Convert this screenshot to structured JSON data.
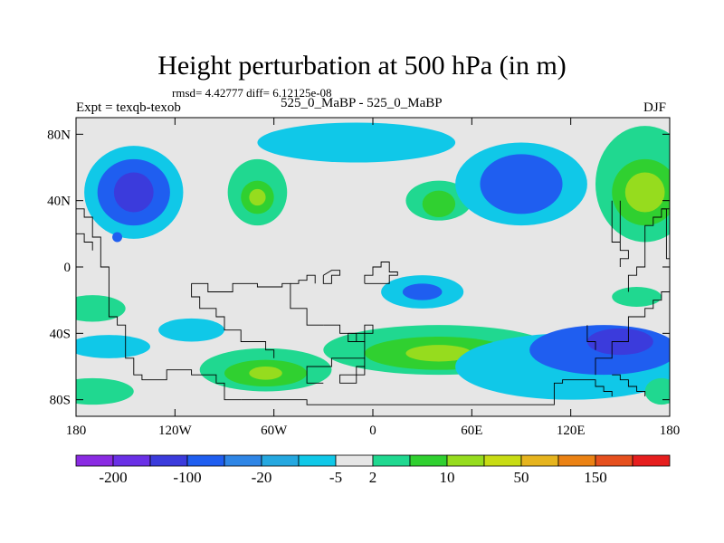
{
  "title": "Height perturbation at 500 hPa (in m)",
  "stats_text": "rmsd= 4.42777 diff= 6.12125e-08",
  "left_label": "Expt = texqb-texob",
  "center_label": "525_0_MaBP - 525_0_MaBP",
  "right_label": "DJF",
  "chart_data": {
    "type": "heatmap",
    "x_range": [
      -180,
      180
    ],
    "y_range": [
      -90,
      90
    ],
    "x_ticks": [
      {
        "value": -180,
        "label": "180"
      },
      {
        "value": -120,
        "label": "120W"
      },
      {
        "value": -60,
        "label": "60W"
      },
      {
        "value": 0,
        "label": "0"
      },
      {
        "value": 60,
        "label": "60E"
      },
      {
        "value": 120,
        "label": "120E"
      },
      {
        "value": 180,
        "label": "180"
      }
    ],
    "y_ticks": [
      {
        "value": 80,
        "label": "80N"
      },
      {
        "value": 40,
        "label": "40N"
      },
      {
        "value": 0,
        "label": "0"
      },
      {
        "value": -40,
        "label": "40S"
      },
      {
        "value": -80,
        "label": "80S"
      }
    ],
    "colorbar": {
      "colors": [
        "#8a2be2",
        "#6a30e6",
        "#3b3bdc",
        "#1f5ef0",
        "#2f86e6",
        "#25a8e0",
        "#10c8e8",
        "#e6e6e6",
        "#20d890",
        "#30d030",
        "#96dc1e",
        "#c8dc14",
        "#e6b41e",
        "#eb8214",
        "#e6501e",
        "#e61e1e"
      ],
      "labels": [
        "-200",
        "-100",
        "-20",
        "-5",
        "2",
        "10",
        "50",
        "150"
      ]
    },
    "regions": [
      {
        "lon": -145,
        "lat": 45,
        "rx": 30,
        "ry": 28,
        "level": -5
      },
      {
        "lon": -145,
        "lat": 45,
        "rx": 22,
        "ry": 20,
        "level": -20
      },
      {
        "lon": -145,
        "lat": 45,
        "rx": 12,
        "ry": 12,
        "level": -100
      },
      {
        "lon": -70,
        "lat": 45,
        "rx": 18,
        "ry": 20,
        "level": 2
      },
      {
        "lon": -70,
        "lat": 42,
        "rx": 10,
        "ry": 10,
        "level": 10
      },
      {
        "lon": -70,
        "lat": 42,
        "rx": 5,
        "ry": 5,
        "level": 50
      },
      {
        "lon": -10,
        "lat": 75,
        "rx": 60,
        "ry": 12,
        "level": -5
      },
      {
        "lon": 40,
        "lat": 40,
        "rx": 20,
        "ry": 12,
        "level": 2
      },
      {
        "lon": 40,
        "lat": 38,
        "rx": 10,
        "ry": 8,
        "level": 10
      },
      {
        "lon": 90,
        "lat": 50,
        "rx": 40,
        "ry": 25,
        "level": -5
      },
      {
        "lon": 90,
        "lat": 50,
        "rx": 25,
        "ry": 18,
        "level": -20
      },
      {
        "lon": 165,
        "lat": 50,
        "rx": 30,
        "ry": 35,
        "level": 2
      },
      {
        "lon": 165,
        "lat": 45,
        "rx": 20,
        "ry": 20,
        "level": 10
      },
      {
        "lon": 165,
        "lat": 45,
        "rx": 12,
        "ry": 12,
        "level": 50
      },
      {
        "lon": -155,
        "lat": 18,
        "rx": 3,
        "ry": 3,
        "level": -20
      },
      {
        "lon": 30,
        "lat": -15,
        "rx": 25,
        "ry": 10,
        "level": -5
      },
      {
        "lon": 30,
        "lat": -15,
        "rx": 12,
        "ry": 5,
        "level": -20
      },
      {
        "lon": -170,
        "lat": -25,
        "rx": 20,
        "ry": 8,
        "level": 2
      },
      {
        "lon": 160,
        "lat": -18,
        "rx": 15,
        "ry": 6,
        "level": 2
      },
      {
        "lon": -110,
        "lat": -38,
        "rx": 20,
        "ry": 7,
        "level": -5
      },
      {
        "lon": -160,
        "lat": -48,
        "rx": 25,
        "ry": 7,
        "level": -5
      },
      {
        "lon": 40,
        "lat": -50,
        "rx": 70,
        "ry": 15,
        "level": 2
      },
      {
        "lon": 40,
        "lat": -52,
        "rx": 45,
        "ry": 10,
        "level": 10
      },
      {
        "lon": 40,
        "lat": -52,
        "rx": 20,
        "ry": 5,
        "level": 50
      },
      {
        "lon": -65,
        "lat": -62,
        "rx": 40,
        "ry": 13,
        "level": 2
      },
      {
        "lon": -65,
        "lat": -64,
        "rx": 25,
        "ry": 8,
        "level": 10
      },
      {
        "lon": -65,
        "lat": -64,
        "rx": 10,
        "ry": 4,
        "level": 50
      },
      {
        "lon": 120,
        "lat": -60,
        "rx": 70,
        "ry": 20,
        "level": -5
      },
      {
        "lon": 140,
        "lat": -50,
        "rx": 45,
        "ry": 15,
        "level": -20
      },
      {
        "lon": 150,
        "lat": -45,
        "rx": 20,
        "ry": 8,
        "level": -100
      },
      {
        "lon": -170,
        "lat": -75,
        "rx": 25,
        "ry": 8,
        "level": 2
      },
      {
        "lon": 175,
        "lat": -75,
        "rx": 10,
        "ry": 8,
        "level": 2
      }
    ],
    "coastlines": [
      [
        [
          -180,
          35
        ],
        [
          -175,
          35
        ],
        [
          -175,
          30
        ],
        [
          -170,
          30
        ],
        [
          -170,
          18
        ],
        [
          -165,
          18
        ],
        [
          -165,
          0
        ],
        [
          -160,
          0
        ],
        [
          -160,
          -30
        ],
        [
          -155,
          -30
        ],
        [
          -155,
          -35
        ],
        [
          -150,
          -35
        ],
        [
          -150,
          -45
        ],
        [
          -150,
          -55
        ],
        [
          -145,
          -55
        ],
        [
          -145,
          -65
        ],
        [
          -140,
          -65
        ],
        [
          -140,
          -68
        ],
        [
          -125,
          -68
        ],
        [
          -125,
          -62
        ],
        [
          -110,
          -62
        ],
        [
          -110,
          -65
        ],
        [
          -95,
          -65
        ],
        [
          -95,
          -70
        ],
        [
          -90,
          -70
        ],
        [
          -90,
          -80
        ],
        [
          -80,
          -80
        ]
      ],
      [
        [
          -80,
          -80
        ],
        [
          -40,
          -80
        ],
        [
          -40,
          -83
        ],
        [
          110,
          -83
        ],
        [
          110,
          -70
        ],
        [
          115,
          -70
        ],
        [
          115,
          -68
        ],
        [
          135,
          -68
        ],
        [
          135,
          -72
        ],
        [
          140,
          -72
        ],
        [
          140,
          -75
        ],
        [
          145,
          -75
        ],
        [
          145,
          -78
        ]
      ],
      [
        [
          -110,
          -10
        ],
        [
          -110,
          -18
        ],
        [
          -105,
          -18
        ],
        [
          -105,
          -25
        ],
        [
          -95,
          -25
        ],
        [
          -95,
          -30
        ],
        [
          -90,
          -30
        ],
        [
          -90,
          -38
        ],
        [
          -80,
          -38
        ],
        [
          -80,
          -45
        ],
        [
          -65,
          -45
        ],
        [
          -65,
          -50
        ],
        [
          -60,
          -50
        ],
        [
          -60,
          -55
        ]
      ],
      [
        [
          -110,
          -10
        ],
        [
          -100,
          -10
        ],
        [
          -100,
          -15
        ],
        [
          -85,
          -15
        ],
        [
          -85,
          -10
        ],
        [
          -70,
          -10
        ],
        [
          -70,
          -12
        ],
        [
          -55,
          -12
        ],
        [
          -55,
          -10
        ],
        [
          -50,
          -10
        ],
        [
          -50,
          -25
        ],
        [
          -40,
          -25
        ],
        [
          -40,
          -35
        ],
        [
          -30,
          -35
        ]
      ],
      [
        [
          -30,
          -35
        ],
        [
          -20,
          -35
        ],
        [
          -20,
          -40
        ],
        [
          -10,
          -40
        ],
        [
          -10,
          -45
        ],
        [
          -5,
          -45
        ],
        [
          -5,
          -55
        ],
        [
          -25,
          -55
        ],
        [
          -25,
          -60
        ],
        [
          -40,
          -60
        ],
        [
          -40,
          -70
        ],
        [
          -30,
          -70
        ]
      ],
      [
        [
          -15,
          -40
        ],
        [
          -15,
          -45
        ],
        [
          -5,
          -45
        ],
        [
          -5,
          -35
        ],
        [
          0,
          -35
        ],
        [
          0,
          -40
        ],
        [
          -15,
          -40
        ]
      ],
      [
        [
          -5,
          -55
        ],
        [
          -5,
          -65
        ],
        [
          -20,
          -65
        ],
        [
          -20,
          -70
        ],
        [
          -10,
          -70
        ],
        [
          -10,
          -60
        ],
        [
          -5,
          -60
        ]
      ],
      [
        [
          -5,
          -10
        ],
        [
          -5,
          -5
        ],
        [
          0,
          -5
        ],
        [
          0,
          0
        ],
        [
          5,
          0
        ],
        [
          5,
          3
        ],
        [
          10,
          3
        ],
        [
          10,
          -3
        ],
        [
          15,
          -3
        ],
        [
          15,
          -5
        ],
        [
          10,
          -5
        ],
        [
          10,
          -10
        ],
        [
          5,
          -10
        ],
        [
          -5,
          -10
        ]
      ],
      [
        [
          -30,
          -5
        ],
        [
          -30,
          -10
        ],
        [
          -25,
          -10
        ],
        [
          -25,
          -5
        ],
        [
          -20,
          -5
        ],
        [
          -20,
          -2
        ],
        [
          -25,
          -2
        ],
        [
          -30,
          -5
        ]
      ],
      [
        [
          -50,
          -10
        ],
        [
          -45,
          -10
        ],
        [
          -45,
          -8
        ],
        [
          -40,
          -8
        ],
        [
          -40,
          -5
        ],
        [
          -35,
          -5
        ],
        [
          -35,
          -10
        ]
      ],
      [
        [
          135,
          -65
        ],
        [
          135,
          -55
        ],
        [
          145,
          -55
        ],
        [
          145,
          -45
        ],
        [
          155,
          -45
        ],
        [
          155,
          -30
        ],
        [
          165,
          -30
        ],
        [
          165,
          -25
        ],
        [
          170,
          -25
        ],
        [
          170,
          -20
        ],
        [
          175,
          -20
        ],
        [
          175,
          -15
        ],
        [
          180,
          -15
        ]
      ],
      [
        [
          130,
          -35
        ],
        [
          130,
          -45
        ],
        [
          135,
          -45
        ],
        [
          135,
          -50
        ]
      ],
      [
        [
          180,
          35
        ],
        [
          175,
          35
        ],
        [
          175,
          30
        ],
        [
          170,
          30
        ],
        [
          170,
          25
        ],
        [
          165,
          25
        ],
        [
          165,
          0
        ],
        [
          160,
          0
        ],
        [
          160,
          -5
        ],
        [
          155,
          -5
        ],
        [
          155,
          -15
        ]
      ],
      [
        [
          150,
          40
        ],
        [
          150,
          10
        ],
        [
          155,
          10
        ],
        [
          155,
          5
        ],
        [
          150,
          5
        ],
        [
          150,
          0
        ]
      ],
      [
        [
          145,
          40
        ],
        [
          145,
          15
        ],
        [
          150,
          15
        ]
      ],
      [
        [
          175,
          35
        ],
        [
          178,
          35
        ],
        [
          178,
          5
        ],
        [
          180,
          5
        ]
      ],
      [
        [
          -180,
          20
        ],
        [
          -175,
          20
        ],
        [
          -175,
          15
        ],
        [
          -170,
          15
        ],
        [
          -170,
          10
        ]
      ],
      [
        [
          145,
          -65
        ],
        [
          150,
          -65
        ],
        [
          150,
          -68
        ],
        [
          155,
          -68
        ],
        [
          155,
          -72
        ],
        [
          160,
          -72
        ],
        [
          160,
          -75
        ],
        [
          165,
          -75
        ],
        [
          165,
          -78
        ]
      ]
    ]
  }
}
